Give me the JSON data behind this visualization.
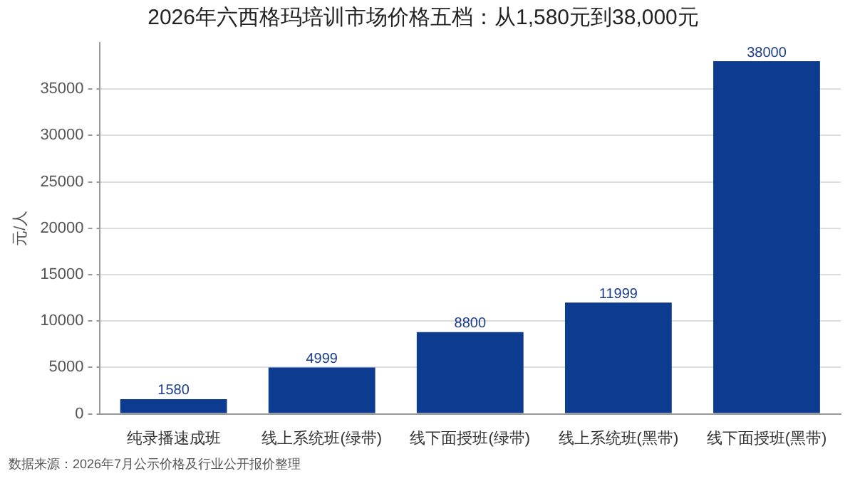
{
  "chart_data": {
    "type": "bar",
    "title": "2026年六西格玛培训市场价格五档：从1,580元到38,000元",
    "ylabel": "元/人",
    "categories": [
      "纯录播速成班",
      "线上系统班(绿带)",
      "线下面授班(绿带)",
      "线上系统班(黑带)",
      "线下面授班(黑带)"
    ],
    "values": [
      1580,
      4999,
      8800,
      11999,
      38000
    ],
    "color": "#0c3b8f",
    "ylim": [
      0,
      40000
    ],
    "yticks": [
      0,
      5000,
      10000,
      15000,
      20000,
      25000,
      30000,
      35000
    ],
    "grid": "y",
    "data_labels": true,
    "legend": false,
    "annotations": [
      "数据来源：2026年7月公示价格及行业公开报价整理"
    ]
  }
}
